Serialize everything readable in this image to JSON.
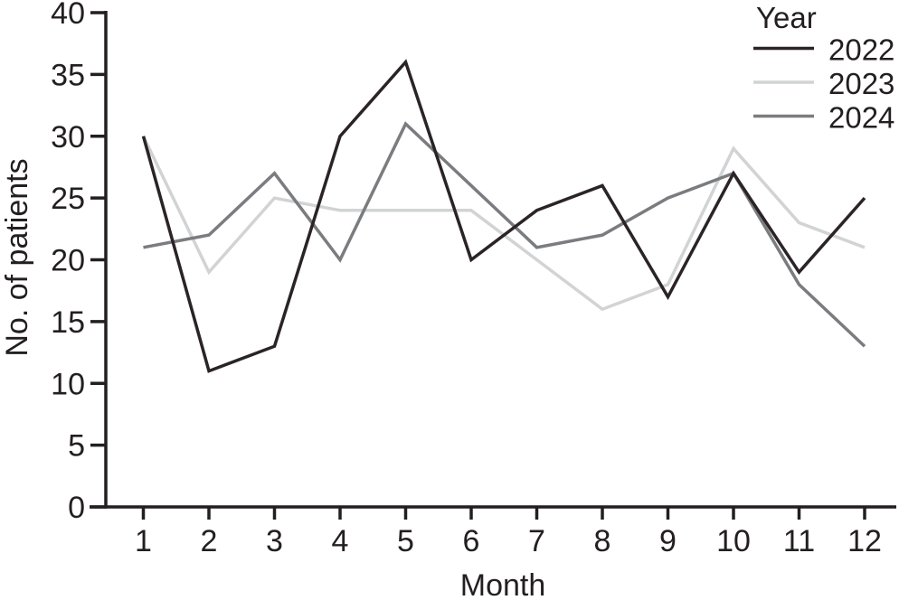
{
  "figure": {
    "background": "#ffffff"
  },
  "colors": {
    "text": "#231f20",
    "axis": "#231f20"
  },
  "chart_data": {
    "type": "line",
    "title": "",
    "xlabel": "Month",
    "ylabel": "No. of patients",
    "x": [
      1,
      2,
      3,
      4,
      5,
      6,
      7,
      8,
      9,
      10,
      11,
      12
    ],
    "xticklabels": [
      "1",
      "2",
      "3",
      "4",
      "5",
      "6",
      "7",
      "8",
      "9",
      "10",
      "11",
      "12"
    ],
    "ylim": [
      0,
      40
    ],
    "yticks": [
      0,
      5,
      10,
      15,
      20,
      25,
      30,
      35,
      40
    ],
    "yticklabels": [
      "0",
      "5",
      "10",
      "15",
      "20",
      "25",
      "30",
      "35",
      "40"
    ],
    "grid": false,
    "legend": {
      "title": "Year",
      "position": "top-right"
    },
    "series": [
      {
        "name": "2022",
        "color": "#2b2426",
        "values": [
          30,
          11,
          13,
          30,
          36,
          20,
          24,
          26,
          17,
          27,
          19,
          25
        ]
      },
      {
        "name": "2023",
        "color": "#d1d3d4",
        "values": [
          30,
          19,
          25,
          24,
          24,
          24,
          20,
          16,
          18,
          29,
          23,
          21
        ]
      },
      {
        "name": "2024",
        "color": "#7b7c7f",
        "values": [
          21,
          22,
          27,
          20,
          31,
          26,
          21,
          22,
          25,
          27,
          18,
          13
        ]
      }
    ]
  }
}
